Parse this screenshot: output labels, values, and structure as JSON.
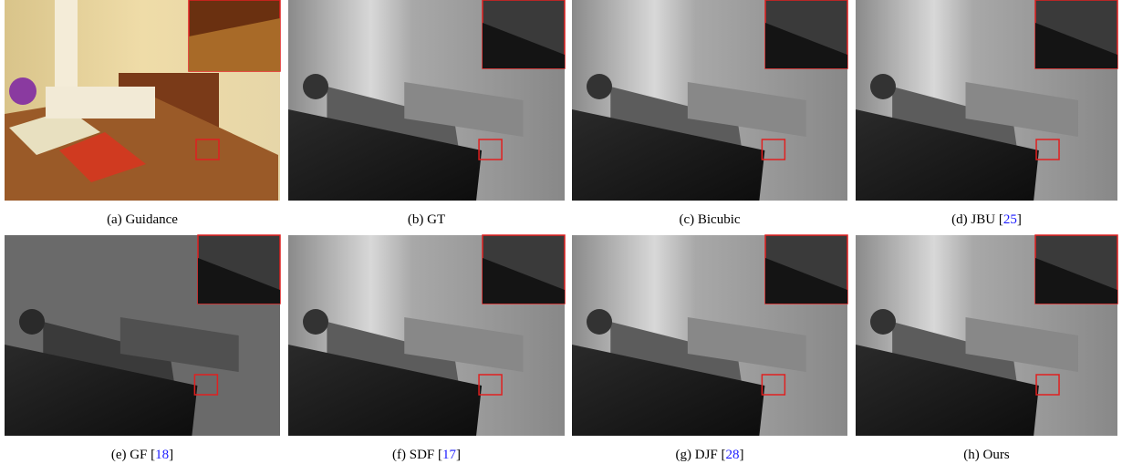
{
  "panels": [
    {
      "caption": [
        "(a) Guidance"
      ]
    },
    {
      "caption": [
        "(b) GT"
      ]
    },
    {
      "caption": [
        "(c) Bicubic"
      ]
    },
    {
      "caption": [
        "(d) JBU [",
        "25",
        "]"
      ]
    },
    {
      "caption": [
        "(e) GF [",
        "18",
        "]"
      ]
    },
    {
      "caption": [
        "(f) SDF [",
        "17",
        "]"
      ]
    },
    {
      "caption": [
        "(g) DJF [",
        "28",
        "]"
      ]
    },
    {
      "caption": [
        "(h) Ours"
      ]
    }
  ]
}
